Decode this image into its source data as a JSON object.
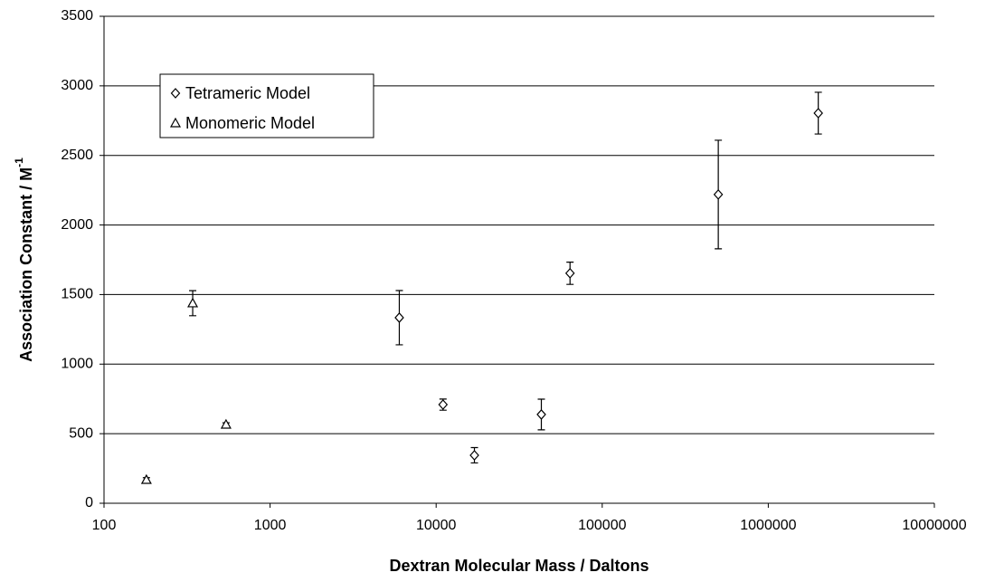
{
  "chart_data": {
    "type": "scatter",
    "x_label": "Dextran Molecular Mass / Daltons",
    "y_label": "Association Constant / M",
    "y_label_superscript": "-1",
    "xscale": "log",
    "xlim": [
      100,
      10000000
    ],
    "xticks": [
      100,
      1000,
      10000,
      100000,
      1000000,
      10000000
    ],
    "ylim": [
      0,
      3500
    ],
    "yticks": [
      0,
      500,
      1000,
      1500,
      2000,
      2500,
      3000,
      3500
    ],
    "grid": true,
    "legend": "upper left",
    "series": [
      {
        "name": "Tetrameric Model",
        "color": "#000000",
        "marker": "diamond",
        "x": [
          6000,
          11000,
          17000,
          43000,
          64000,
          500000,
          2000000
        ],
        "values": [
          1334,
          709,
          345,
          638,
          1653,
          2219,
          2804
        ],
        "errors": [
          195,
          40,
          55,
          110,
          80,
          390,
          150
        ]
      },
      {
        "name": "Monomeric Model",
        "color": "#000000",
        "marker": "triangle",
        "x": [
          180,
          342,
          543
        ],
        "values": [
          169,
          1438,
          566
        ],
        "errors": [
          15,
          90,
          12
        ]
      }
    ]
  }
}
